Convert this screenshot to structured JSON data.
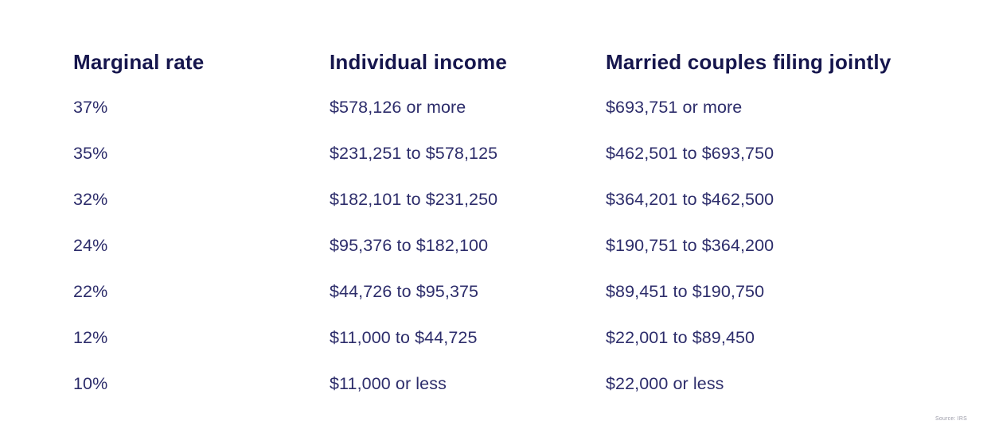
{
  "table": {
    "headers": {
      "rate": "Marginal rate",
      "individual": "Individual income",
      "married": "Married couples filing jointly"
    },
    "rows": [
      {
        "rate": "37%",
        "individual": "$578,126 or more",
        "married": "$693,751 or more"
      },
      {
        "rate": "35%",
        "individual": "$231,251 to $578,125",
        "married": "$462,501 to $693,750"
      },
      {
        "rate": "32%",
        "individual": "$182,101 to $231,250",
        "married": "$364,201 to $462,500"
      },
      {
        "rate": "24%",
        "individual": "$95,376 to $182,100",
        "married": "$190,751 to $364,200"
      },
      {
        "rate": "22%",
        "individual": "$44,726 to $95,375",
        "married": "$89,451 to $190,750"
      },
      {
        "rate": "12%",
        "individual": "$11,000 to $44,725",
        "married": "$22,001 to $89,450"
      },
      {
        "rate": "10%",
        "individual": "$11,000 or less",
        "married": "$22,000 or less"
      }
    ]
  },
  "source": "Source: IRS",
  "colors": {
    "background": "#ffffff",
    "header_text": "#16164d",
    "body_text": "#2d2d6b",
    "source_text": "#9b9ba8"
  },
  "chart_data": {
    "type": "table",
    "title": "",
    "columns": [
      "Marginal rate",
      "Individual income",
      "Married couples filing jointly"
    ],
    "rows": [
      [
        "37%",
        "$578,126 or more",
        "$693,751 or more"
      ],
      [
        "35%",
        "$231,251 to $578,125",
        "$462,501 to $693,750"
      ],
      [
        "32%",
        "$182,101 to $231,250",
        "$364,201 to $462,500"
      ],
      [
        "24%",
        "$95,376 to $182,100",
        "$190,751 to $364,200"
      ],
      [
        "22%",
        "$44,726 to $95,375",
        "$89,451 to $190,750"
      ],
      [
        "12%",
        "$11,000 to $44,725",
        "$22,001 to $89,450"
      ],
      [
        "10%",
        "$11,000 or less",
        "$22,000 or less"
      ]
    ],
    "source": "Source: IRS"
  }
}
